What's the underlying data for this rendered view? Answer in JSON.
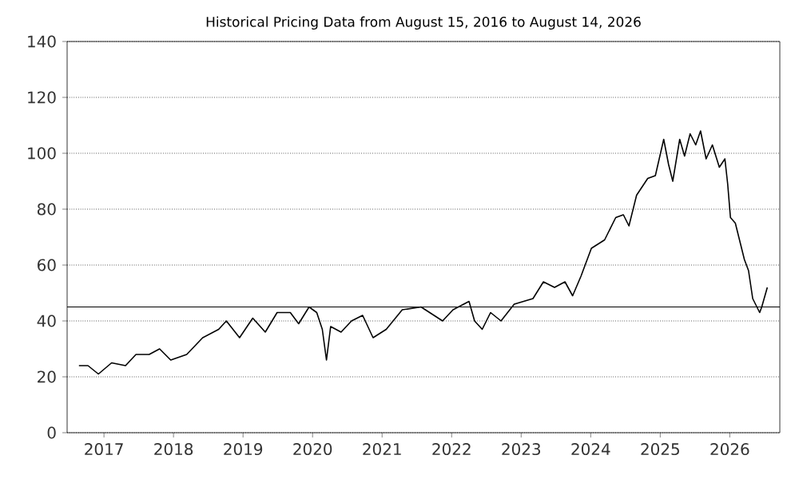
{
  "chart_data": {
    "type": "line",
    "title": "Historical Pricing Data from August 15, 2016 to August 14, 2026",
    "xlim": [
      2016.47,
      2026.72
    ],
    "xticks": [
      2017,
      2018,
      2019,
      2020,
      2021,
      2022,
      2023,
      2024,
      2025,
      2026
    ],
    "ylim": [
      0,
      140
    ],
    "yticks": [
      0,
      20,
      40,
      60,
      80,
      100,
      120,
      140
    ],
    "grid": "y",
    "marker": "none",
    "line_style": "solid",
    "ref_lines": [
      {
        "axis": "y",
        "value": 45,
        "color": "#000000"
      }
    ],
    "series": [
      {
        "color": "#000000",
        "x": [
          2016.64,
          2016.77,
          2016.92,
          2017.11,
          2017.31,
          2017.46,
          2017.65,
          2017.8,
          2017.96,
          2018.19,
          2018.42,
          2018.65,
          2018.76,
          2018.95,
          2019.14,
          2019.32,
          2019.49,
          2019.68,
          2019.8,
          2019.95,
          2020.06,
          2020.14,
          2020.2,
          2020.26,
          2020.41,
          2020.56,
          2020.72,
          2020.87,
          2021.06,
          2021.29,
          2021.56,
          2021.87,
          2022.02,
          2022.25,
          2022.33,
          2022.44,
          2022.56,
          2022.71,
          2022.9,
          2023.17,
          2023.32,
          2023.48,
          2023.63,
          2023.74,
          2023.86,
          2024.01,
          2024.2,
          2024.36,
          2024.47,
          2024.55,
          2024.66,
          2024.82,
          2024.93,
          2025.05,
          2025.12,
          2025.18,
          2025.28,
          2025.35,
          2025.43,
          2025.51,
          2025.58,
          2025.66,
          2025.75,
          2025.85,
          2025.93,
          2025.97,
          2026.01,
          2026.08,
          2026.16,
          2026.21,
          2026.27,
          2026.33,
          2026.43,
          2026.46,
          2026.54
        ],
        "values": [
          24,
          24,
          21,
          25,
          24,
          28,
          28,
          30,
          26,
          28,
          34,
          37,
          40,
          34,
          41,
          36,
          43,
          43,
          39,
          45,
          43,
          37,
          26,
          38,
          36,
          40,
          42,
          34,
          37,
          44,
          45,
          40,
          44,
          47,
          40,
          37,
          43,
          40,
          46,
          48,
          54,
          52,
          54,
          49,
          56,
          66,
          69,
          77,
          78,
          74,
          85,
          91,
          92,
          105,
          96,
          90,
          105,
          99,
          107,
          103,
          108,
          98,
          103,
          95,
          98,
          89,
          77,
          75,
          67,
          62,
          58,
          48,
          43,
          45,
          52
        ]
      }
    ]
  }
}
